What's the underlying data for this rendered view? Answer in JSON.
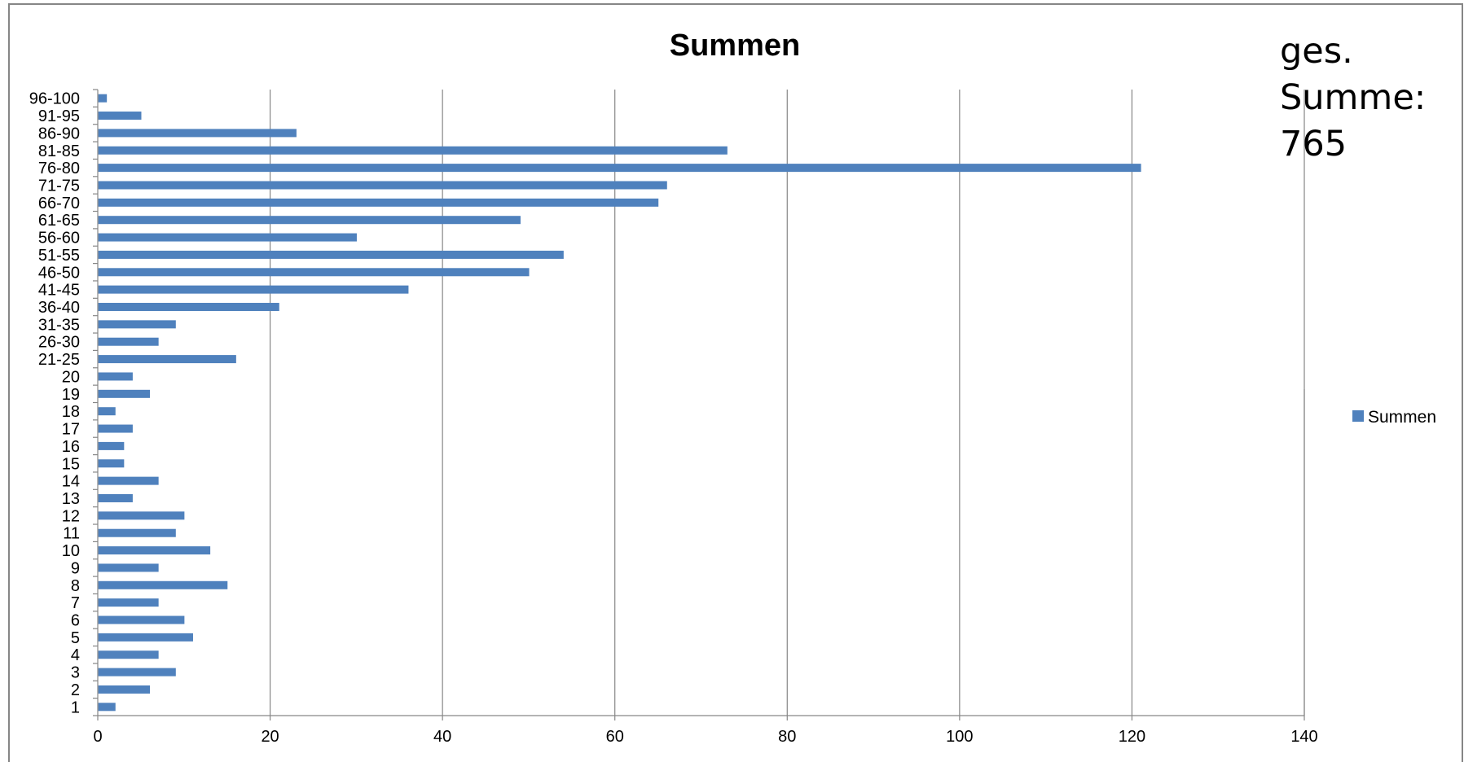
{
  "chart_data": {
    "type": "bar",
    "orientation": "horizontal",
    "title": "Summen",
    "xlabel": "",
    "ylabel": "",
    "xlim": [
      0,
      140
    ],
    "xticks": [
      "0",
      "20",
      "40",
      "60",
      "80",
      "100",
      "120",
      "140"
    ],
    "grid": "vertical major gridlines",
    "legend_position": "right",
    "categories": [
      "1",
      "2",
      "3",
      "4",
      "5",
      "6",
      "7",
      "8",
      "9",
      "10",
      "11",
      "12",
      "13",
      "14",
      "15",
      "16",
      "17",
      "18",
      "19",
      "20",
      "21-25",
      "26-30",
      "31-35",
      "36-40",
      "41-45",
      "46-50",
      "51-55",
      "56-60",
      "61-65",
      "66-70",
      "71-75",
      "76-80",
      "81-85",
      "86-90",
      "91-95",
      "96-100"
    ],
    "series": [
      {
        "name": "Summen",
        "color": "#4f81bd",
        "values": [
          2,
          6,
          9,
          7,
          11,
          10,
          7,
          15,
          7,
          13,
          9,
          10,
          4,
          7,
          3,
          3,
          4,
          2,
          6,
          4,
          16,
          7,
          9,
          21,
          36,
          50,
          54,
          30,
          49,
          65,
          66,
          121,
          73,
          23,
          5,
          1
        ]
      }
    ]
  },
  "annotation": {
    "lines": [
      "ges.",
      "Summe:",
      "765"
    ]
  },
  "colors": {
    "bar": "#4f81bd",
    "gridline": "#868686",
    "frame": "#868686"
  }
}
